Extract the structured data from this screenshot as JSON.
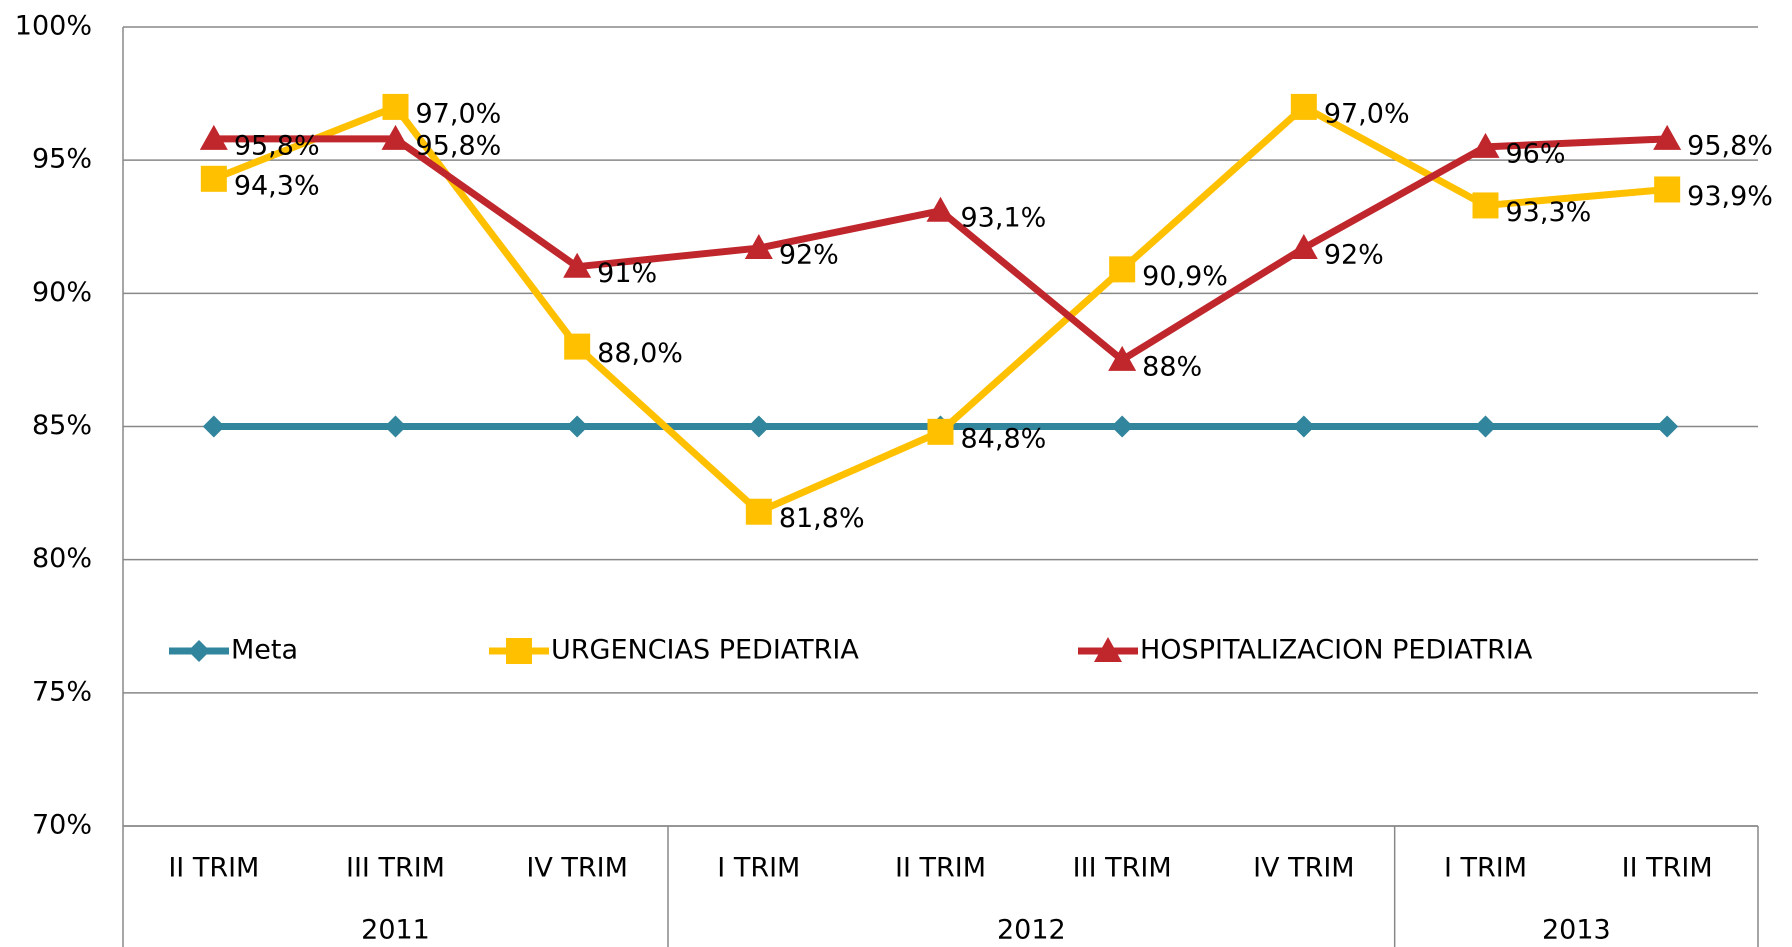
{
  "chart_data": {
    "type": "line",
    "categories": [
      "II TRIM",
      "III TRIM",
      "IV TRIM",
      "I TRIM",
      "II TRIM",
      "III TRIM",
      "IV TRIM",
      "I TRIM",
      "II TRIM"
    ],
    "groups": [
      {
        "name": "2011",
        "count": 3
      },
      {
        "name": "2012",
        "count": 4
      },
      {
        "name": "2013",
        "count": 2
      }
    ],
    "series": [
      {
        "name": "Meta",
        "color": "#31859c",
        "marker": "diamond",
        "values": [
          85,
          85,
          85,
          85,
          85,
          85,
          85,
          85,
          85
        ]
      },
      {
        "name": "URGENCIAS PEDIATRIA",
        "color": "#ffc000",
        "marker": "square",
        "values": [
          94.3,
          97.0,
          88.0,
          81.8,
          84.8,
          90.9,
          97.0,
          93.3,
          93.9
        ],
        "value_labels": [
          "94,3%",
          "97,0%",
          "88,0%",
          "81,8%",
          "84,8%",
          "90,9%",
          "97,0%",
          "93,3%",
          "93,9%"
        ]
      },
      {
        "name": "HOSPITALIZACION PEDIATRIA",
        "color": "#c0272d",
        "marker": "triangle",
        "values": [
          95.8,
          95.8,
          91,
          91.7,
          93.1,
          87.5,
          91.7,
          95.5,
          95.8
        ],
        "value_labels": [
          "95,8%",
          "95,8%",
          "91%",
          "92%",
          "93,1%",
          "88%",
          "92%",
          "96%",
          "95,8%"
        ]
      }
    ],
    "ylim": [
      70,
      100
    ],
    "yticks": [
      {
        "value": 70,
        "label": "70%"
      },
      {
        "value": 75,
        "label": "75%"
      },
      {
        "value": 80,
        "label": "80%"
      },
      {
        "value": 85,
        "label": "85%"
      },
      {
        "value": 90,
        "label": "90%"
      },
      {
        "value": 95,
        "label": "95%"
      },
      {
        "value": 100,
        "label": "100%"
      }
    ],
    "grid": true,
    "legend": "inside"
  }
}
